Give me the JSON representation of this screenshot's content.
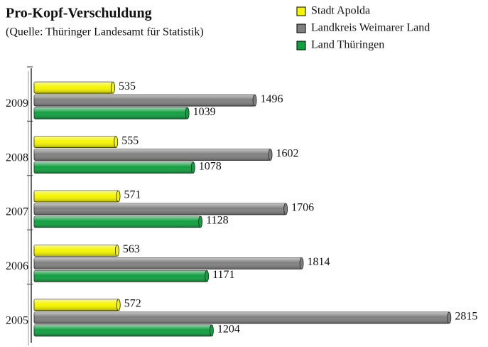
{
  "chart_data": {
    "type": "barh",
    "title": "Pro-Kopf-Verschuldung",
    "subtitle": "(Quelle: Thüringer Landesamt für Statistik)",
    "categories": [
      "2009",
      "2008",
      "2007",
      "2006",
      "2005"
    ],
    "series": [
      {
        "name": "Stadt Apolda",
        "color": "#f5f500",
        "values": [
          535,
          555,
          571,
          563,
          572
        ]
      },
      {
        "name": "Landkreis Weimarer Land",
        "color": "#808080",
        "values": [
          1496,
          1602,
          1706,
          1814,
          2815
        ]
      },
      {
        "name": "Land Thüringen",
        "color": "#10a040",
        "values": [
          1039,
          1078,
          1128,
          1171,
          1204
        ]
      }
    ],
    "xlim": [
      0,
      2900
    ],
    "legend": "top-right"
  }
}
